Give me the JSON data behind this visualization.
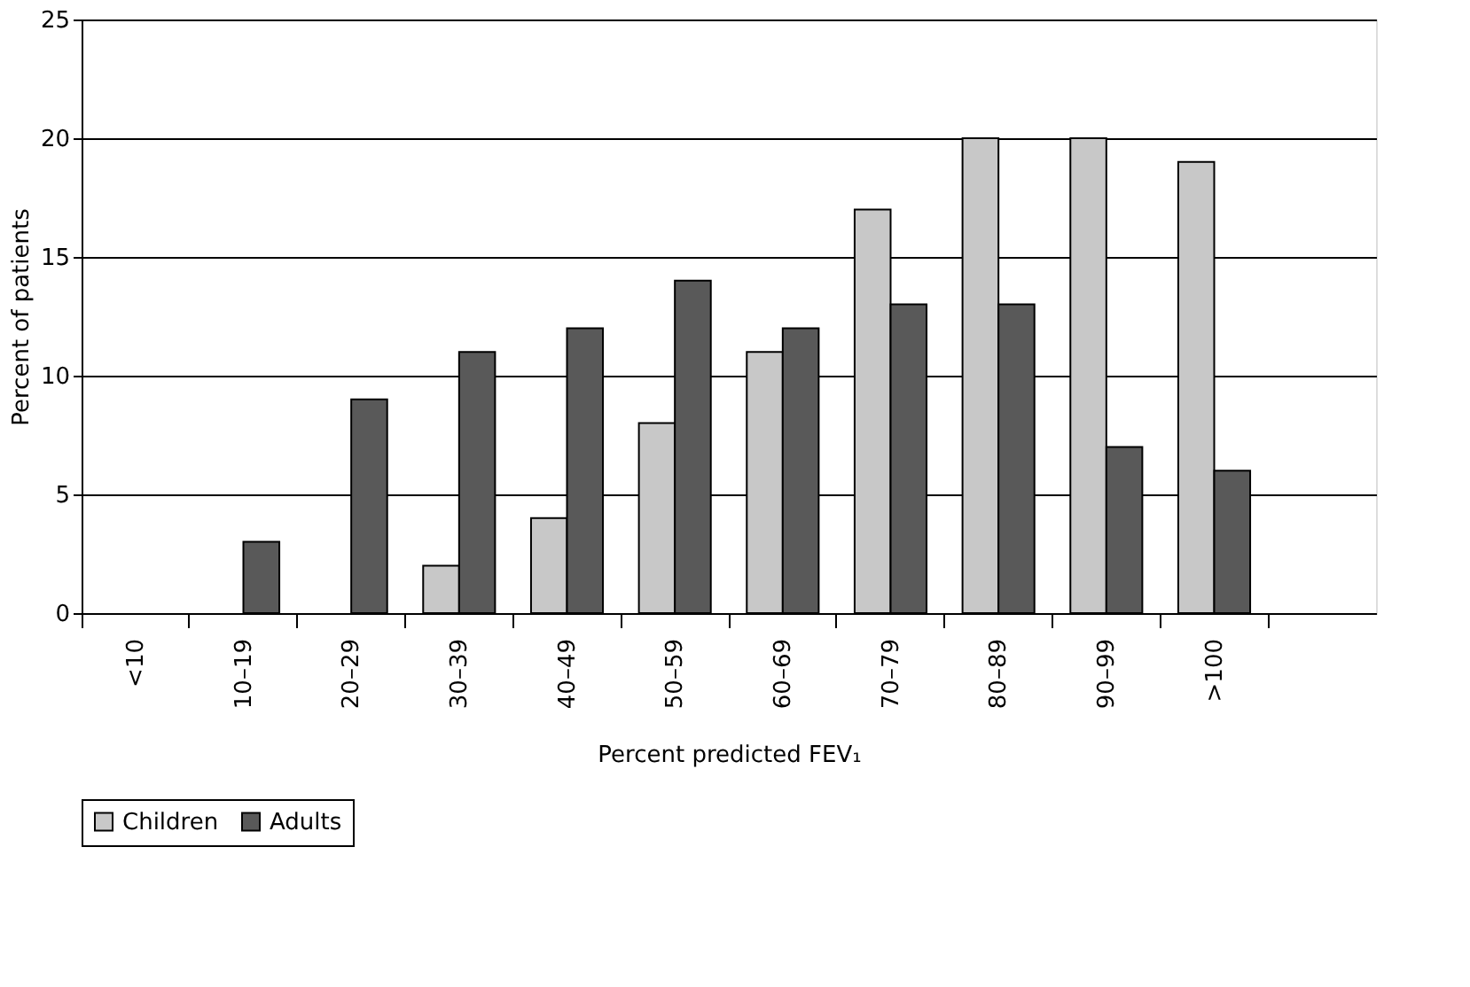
{
  "chart_data": {
    "type": "bar",
    "xlabel": "Percent predicted FEV₁",
    "ylabel": "Percent of patients",
    "categories": [
      "<10",
      "10–19",
      "20–29",
      "30–39",
      "40–49",
      "50–59",
      "60–69",
      "70–79",
      "80–89",
      "90–99",
      ">100",
      null
    ],
    "series": [
      {
        "name": "Children",
        "color": "#c8c8c8",
        "values": [
          null,
          null,
          null,
          2,
          4,
          8,
          11,
          17,
          20,
          20,
          19,
          null
        ]
      },
      {
        "name": "Adults",
        "color": "#595959",
        "values": [
          null,
          3,
          9,
          11,
          12,
          14,
          12,
          13,
          13,
          7,
          6,
          null
        ]
      }
    ],
    "ylim": [
      0,
      25
    ],
    "yticks": [
      0,
      5,
      10,
      15,
      20,
      25
    ],
    "grid": "y",
    "legend": "bottom"
  }
}
